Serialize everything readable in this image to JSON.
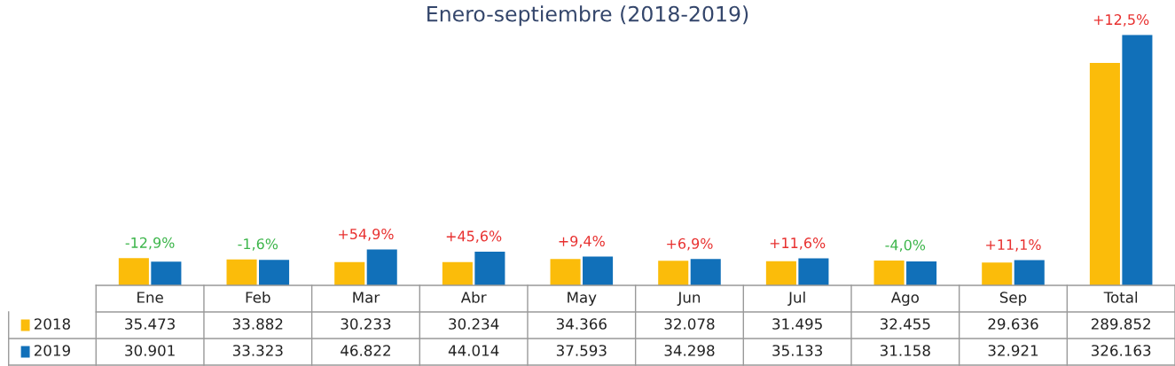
{
  "chart_data": {
    "type": "bar",
    "title": "Enero-septiembre (2018-2019)",
    "categories": [
      "Ene",
      "Feb",
      "Mar",
      "Abr",
      "May",
      "Jun",
      "Jul",
      "Ago",
      "Sep",
      "Total"
    ],
    "series": [
      {
        "name": "2018",
        "color": "#fbbc0a",
        "values": [
          35473,
          33882,
          30233,
          30234,
          34366,
          32078,
          31495,
          32455,
          29636,
          289852
        ],
        "value_labels": [
          "35.473",
          "33.882",
          "30.233",
          "30.234",
          "34.366",
          "32.078",
          "31.495",
          "32.455",
          "29.636",
          "289.852"
        ]
      },
      {
        "name": "2019",
        "color": "#1170b9",
        "values": [
          30901,
          33323,
          46822,
          44014,
          37593,
          34298,
          35133,
          31158,
          32921,
          326163
        ],
        "value_labels": [
          "30.901",
          "33.323",
          "46.822",
          "44.014",
          "37.593",
          "34.298",
          "35.133",
          "31.158",
          "32.921",
          "326.163"
        ]
      }
    ],
    "data_labels": true,
    "legend": "left",
    "annotations": [
      {
        "text": "-12,9%",
        "x": "Ene",
        "y": 35473
      },
      {
        "text": "-1,6%",
        "x": "Feb",
        "y": 33882
      },
      {
        "text": "+54,9%",
        "x": "Mar",
        "y": 46822
      },
      {
        "text": "+45,6%",
        "x": "Abr",
        "y": 44014
      },
      {
        "text": "+9,4%",
        "x": "May",
        "y": 37593
      },
      {
        "text": "+6,9%",
        "x": "Jun",
        "y": 34298
      },
      {
        "text": "+11,6%",
        "x": "Jul",
        "y": 35133
      },
      {
        "text": "-4,0%",
        "x": "Ago",
        "y": 32455
      },
      {
        "text": "+11,1%",
        "x": "Sep",
        "y": 32921
      },
      {
        "text": "+12,5%",
        "x": "Total",
        "y": 326163
      }
    ]
  }
}
